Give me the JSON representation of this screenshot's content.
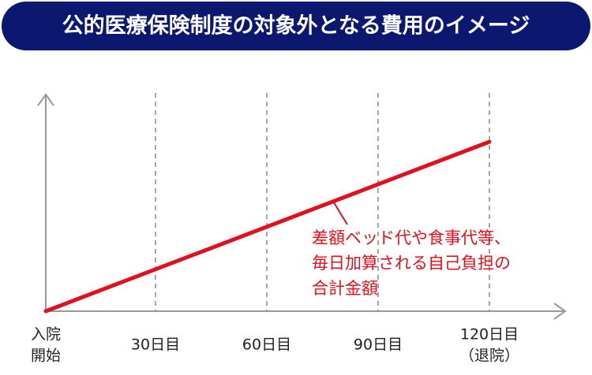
{
  "header": {
    "title": "公的医療保険制度の対象外となる費用のイメージ"
  },
  "axis": {
    "labels": [
      [
        "入院",
        "開始"
      ],
      [
        "30日目"
      ],
      [
        "60日目"
      ],
      [
        "90日目"
      ],
      [
        "120日目",
        "（退院）"
      ]
    ]
  },
  "annotation": {
    "lines": [
      "差額ベッド代や食事代等、",
      "毎日加算される自己負担の",
      "合計金額"
    ]
  }
}
